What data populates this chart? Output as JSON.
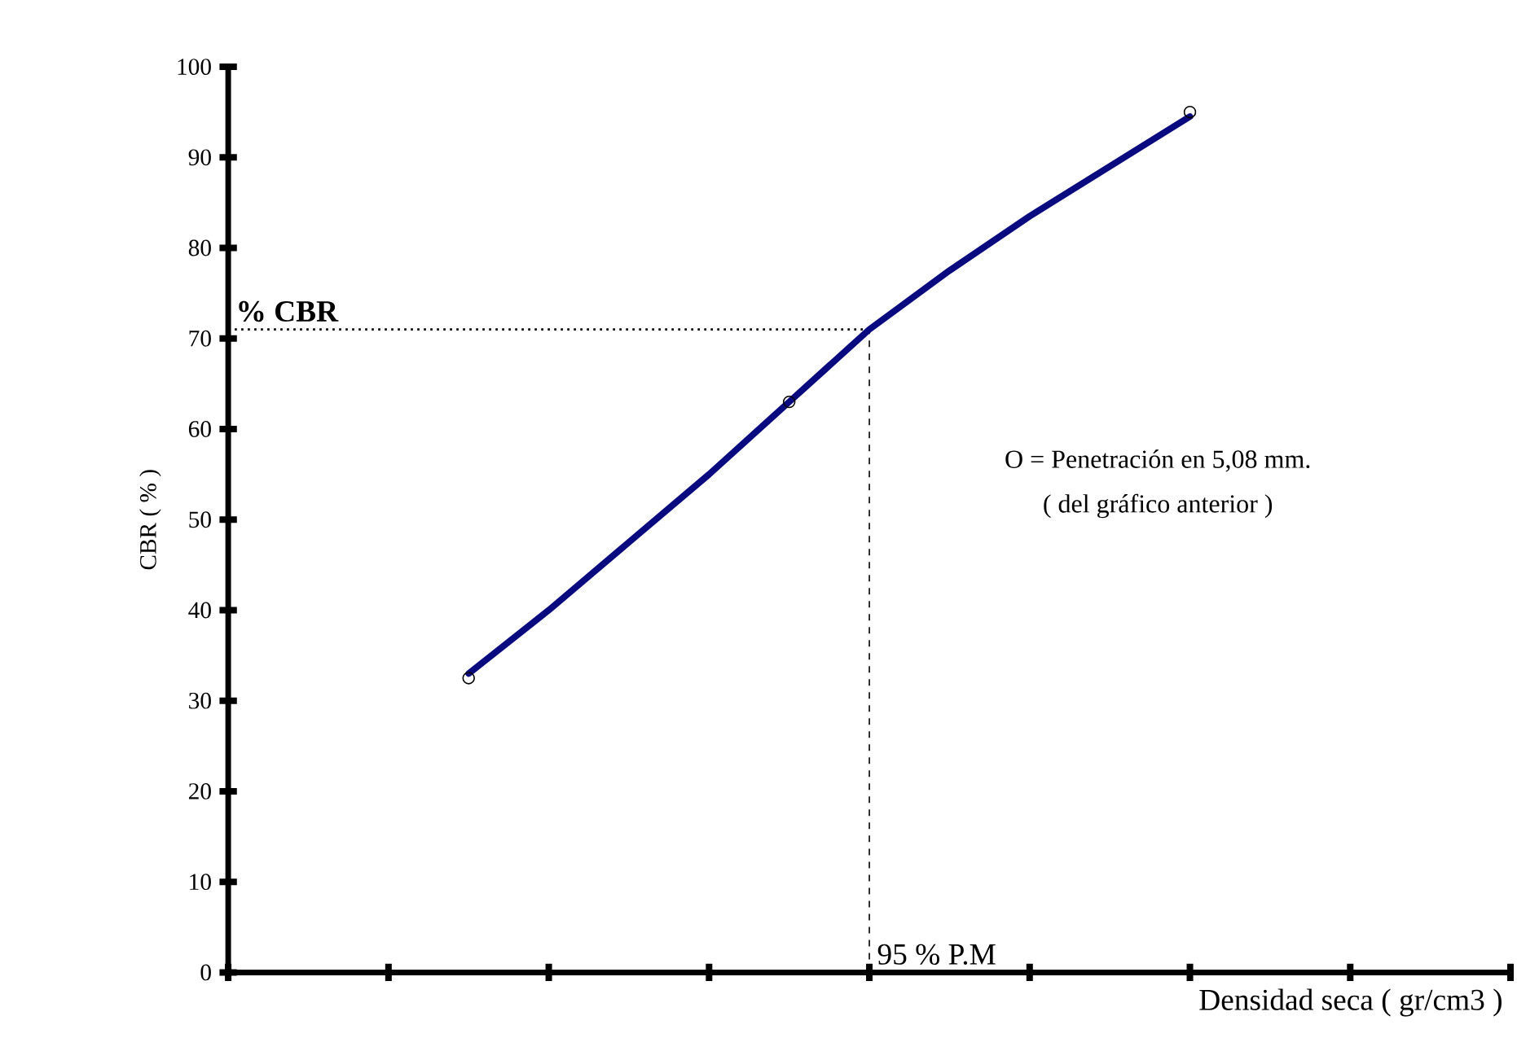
{
  "chart_data": {
    "type": "line",
    "xlabel": "Densidad seca ( gr/cm3 )",
    "ylabel": "CBR ( % )",
    "categories": [
      null,
      null,
      null,
      null,
      null,
      null,
      null,
      null,
      null,
      null,
      null,
      null,
      null,
      null,
      null,
      null,
      null
    ],
    "ylim": [
      0,
      100
    ],
    "yticks": [
      0,
      10,
      20,
      30,
      40,
      50,
      60,
      70,
      80,
      90,
      100
    ],
    "series": [
      {
        "color": "#0a0a80",
        "values": [
          null,
          null,
          null,
          33,
          40,
          47.5,
          55,
          63,
          71,
          77.5,
          83.5,
          89,
          94.5,
          null,
          null,
          null,
          null
        ]
      },
      {
        "type": "scatter",
        "color": "#000000",
        "marker": "circle",
        "values": [
          null,
          null,
          null,
          32.5,
          null,
          null,
          null,
          63,
          null,
          null,
          null,
          null,
          95,
          null,
          null,
          null,
          null
        ]
      }
    ],
    "ref_lines": [
      {
        "axis": "y",
        "value": 71,
        "label": "% CBR",
        "line_style": "dotted"
      }
    ],
    "annotations": [
      "O = Penetración en 5,08 mm.",
      "( del gráfico anterior )",
      "95 % P.M"
    ]
  }
}
